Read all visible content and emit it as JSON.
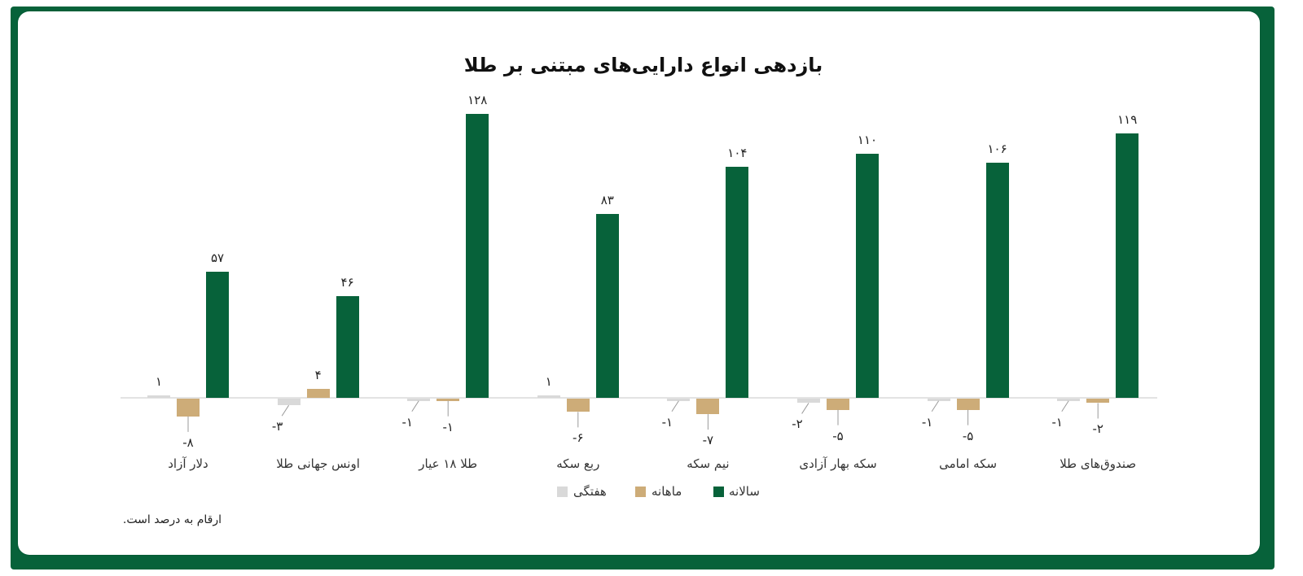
{
  "title": "بازدهی انواع دارایی‌های مبتنی بر طلا",
  "note": "ارقام به درصد است.",
  "colors": {
    "weekly": "#d9d9d9",
    "monthly": "#cdac78",
    "yearly": "#07623a",
    "frame": "#07623a"
  },
  "legend": [
    {
      "key": "weekly",
      "label": "هفتگی"
    },
    {
      "key": "monthly",
      "label": "ماهانه"
    },
    {
      "key": "yearly",
      "label": "سالانه"
    }
  ],
  "categories_display": [
    "دلار آزاد",
    "اونس جهانی طلا",
    "طلا ۱۸ عیار",
    "ربع سکه",
    "نیم سکه",
    "سکه بهار آزادی",
    "سکه امامی",
    "صندوق‌های طلا"
  ],
  "labels": {
    "weekly": [
      "۱",
      "-۳",
      "-۱",
      "۱",
      "-۱",
      "-۲",
      "-۱",
      "-۱"
    ],
    "monthly": [
      "-۸",
      "۴",
      "-۱",
      "-۶",
      "-۷",
      "-۵",
      "-۵",
      "-۲"
    ],
    "yearly": [
      "۵۷",
      "۴۶",
      "۱۲۸",
      "۸۳",
      "۱۰۴",
      "۱۱۰",
      "۱۰۶",
      "۱۱۹"
    ]
  },
  "chart_data": {
    "type": "bar",
    "title": "بازدهی انواع دارایی‌های مبتنی بر طلا",
    "xlabel": "",
    "ylabel": "",
    "unit": "percent",
    "categories": [
      "دلار آزاد",
      "اونس جهانی طلا",
      "طلا ۱۸ عیار",
      "ربع سکه",
      "نیم سکه",
      "سکه بهار آزادی",
      "سکه امامی",
      "صندوق‌های طلا"
    ],
    "series": [
      {
        "name": "هفتگی",
        "color": "#d9d9d9",
        "values": [
          1,
          -3,
          -1,
          1,
          -1,
          -2,
          -1,
          -1
        ]
      },
      {
        "name": "ماهانه",
        "color": "#cdac78",
        "values": [
          -8,
          4,
          -1,
          -6,
          -7,
          -5,
          -5,
          -2
        ]
      },
      {
        "name": "سالانه",
        "color": "#07623a",
        "values": [
          57,
          46,
          128,
          83,
          104,
          110,
          106,
          119
        ]
      }
    ],
    "ylim": [
      -10,
      130
    ],
    "grid": false,
    "legend_position": "bottom",
    "data_labels": true,
    "footnote": "ارقام به درصد است."
  }
}
